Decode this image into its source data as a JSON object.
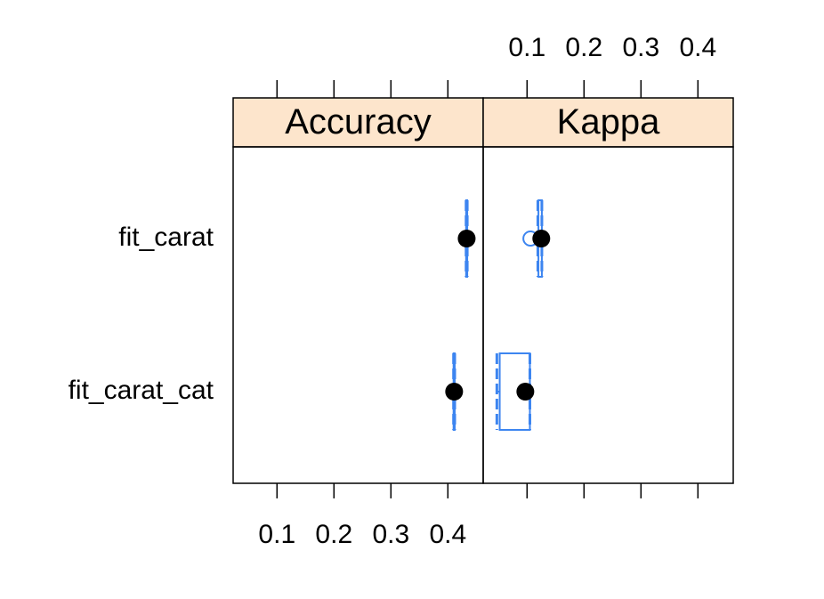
{
  "chart_data": {
    "type": "box",
    "categories": [
      "fit_carat",
      "fit_carat_cat"
    ],
    "box_color": "#3d85f0",
    "median_color": "#000000",
    "strip_color": "#fde5cc",
    "panels": [
      {
        "title": "Accuracy",
        "xlim": [
          0.023,
          0.462
        ],
        "xticks": [
          0.1,
          0.2,
          0.3,
          0.4
        ],
        "tick_labels_side": "bottom",
        "boxes": [
          {
            "min": 0.432,
            "q1": 0.432,
            "median": 0.433,
            "q3": 0.434,
            "max": 0.434,
            "outliers": []
          },
          {
            "min": 0.41,
            "q1": 0.41,
            "median": 0.411,
            "q3": 0.412,
            "max": 0.412,
            "outliers": []
          }
        ]
      },
      {
        "title": "Kappa",
        "xlim": [
          0.023,
          0.462
        ],
        "xticks": [
          0.1,
          0.2,
          0.3,
          0.4
        ],
        "tick_labels_side": "top",
        "boxes": [
          {
            "min": 0.119,
            "q1": 0.12,
            "median": 0.125,
            "q3": 0.126,
            "max": 0.126,
            "outliers": [
              0.106
            ]
          },
          {
            "min": 0.047,
            "q1": 0.052,
            "median": 0.097,
            "q3": 0.105,
            "max": 0.105,
            "outliers": []
          }
        ]
      }
    ]
  }
}
